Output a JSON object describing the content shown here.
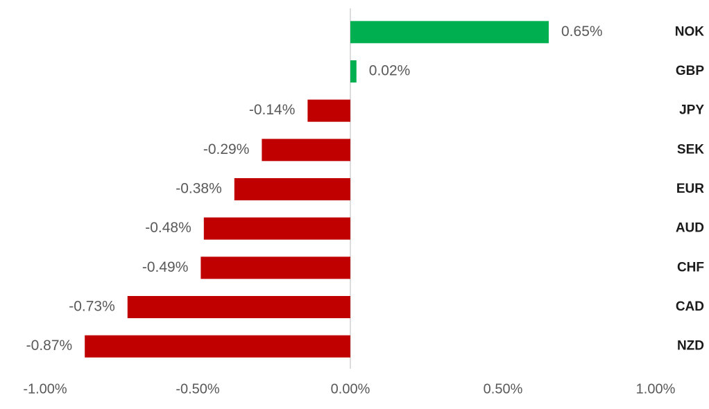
{
  "chart_data": {
    "type": "hbar",
    "categories": [
      "NOK",
      "GBP",
      "JPY",
      "SEK",
      "EUR",
      "AUD",
      "CHF",
      "CAD",
      "NZD"
    ],
    "values": [
      0.65,
      0.02,
      -0.14,
      -0.29,
      -0.38,
      -0.48,
      -0.49,
      -0.73,
      -0.87
    ],
    "value_labels": [
      "0.65%",
      "0.02%",
      "-0.14%",
      "-0.29%",
      "-0.38%",
      "-0.48%",
      "-0.49%",
      "-0.73%",
      "-0.87%"
    ],
    "colors": {
      "positive": "#00b050",
      "negative": "#c00000"
    },
    "xlim": [
      -1,
      1
    ],
    "xticks": [
      {
        "value": -1,
        "label": "-1.00%"
      },
      {
        "value": -0.5,
        "label": "-0.50%"
      },
      {
        "value": 0,
        "label": "0.00%"
      },
      {
        "value": 0.5,
        "label": "0.50%"
      },
      {
        "value": 1,
        "label": "1.00%"
      }
    ]
  }
}
